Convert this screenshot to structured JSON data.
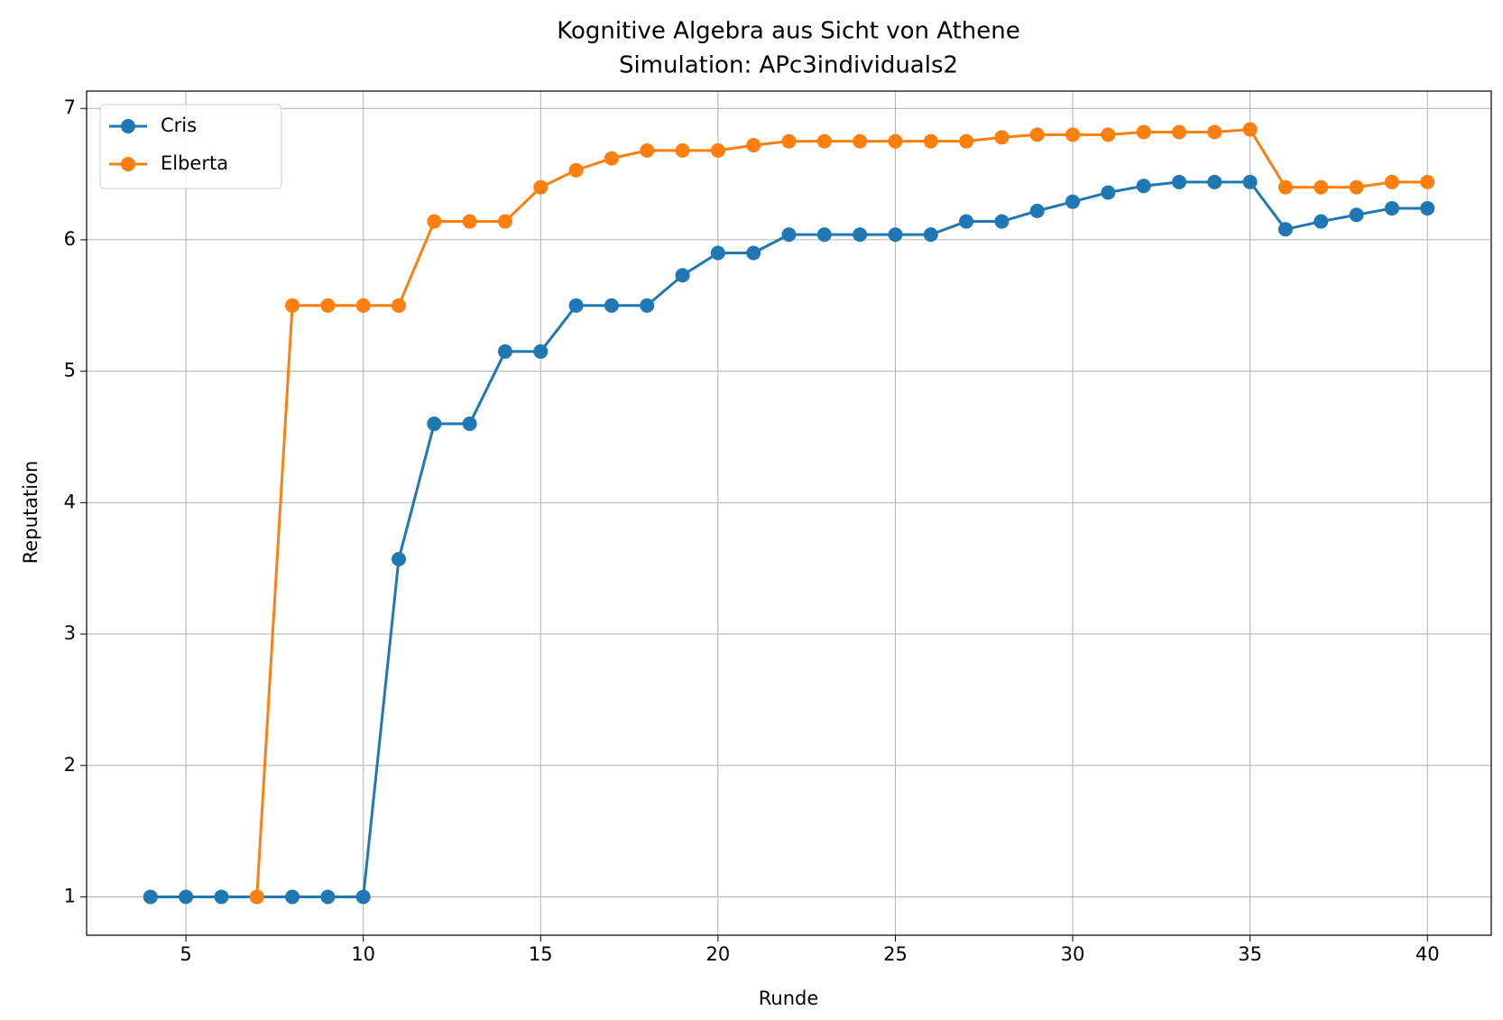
{
  "chart_data": {
    "type": "line",
    "title": "Kognitive Algebra aus Sicht von Athene",
    "subtitle": "Simulation: APc3individuals2",
    "xlabel": "Runde",
    "ylabel": "Reputation",
    "x": [
      4,
      5,
      6,
      7,
      8,
      9,
      10,
      11,
      12,
      13,
      14,
      15,
      16,
      17,
      18,
      19,
      20,
      21,
      22,
      23,
      24,
      25,
      26,
      27,
      28,
      29,
      30,
      31,
      32,
      33,
      34,
      35,
      36,
      37,
      38,
      39,
      40
    ],
    "series": [
      {
        "name": "Cris",
        "color": "#1f77b4",
        "values": [
          1,
          1,
          1,
          1,
          1,
          1,
          1,
          3.57,
          4.6,
          4.6,
          5.15,
          5.15,
          5.5,
          5.5,
          5.5,
          5.73,
          5.9,
          5.9,
          6.04,
          6.04,
          6.04,
          6.04,
          6.04,
          6.14,
          6.14,
          6.22,
          6.29,
          6.36,
          6.41,
          6.44,
          6.44,
          6.44,
          6.08,
          6.14,
          6.19,
          6.24,
          6.24
        ]
      },
      {
        "name": "Elberta",
        "color": "#ff7f0e",
        "values": [
          null,
          null,
          null,
          1,
          5.5,
          5.5,
          5.5,
          5.5,
          6.14,
          6.14,
          6.14,
          6.4,
          6.53,
          6.62,
          6.68,
          6.68,
          6.68,
          6.72,
          6.75,
          6.75,
          6.75,
          6.75,
          6.75,
          6.75,
          6.78,
          6.8,
          6.8,
          6.8,
          6.82,
          6.82,
          6.82,
          6.84,
          6.4,
          6.4,
          6.4,
          6.44,
          6.44
        ]
      }
    ],
    "xlim": [
      2.2,
      41.8
    ],
    "ylim": [
      0.708,
      7.132
    ],
    "xticks": [
      5,
      10,
      15,
      20,
      25,
      30,
      35,
      40
    ],
    "yticks": [
      1,
      2,
      3,
      4,
      5,
      6,
      7
    ],
    "grid": true,
    "legend": "upper left"
  }
}
